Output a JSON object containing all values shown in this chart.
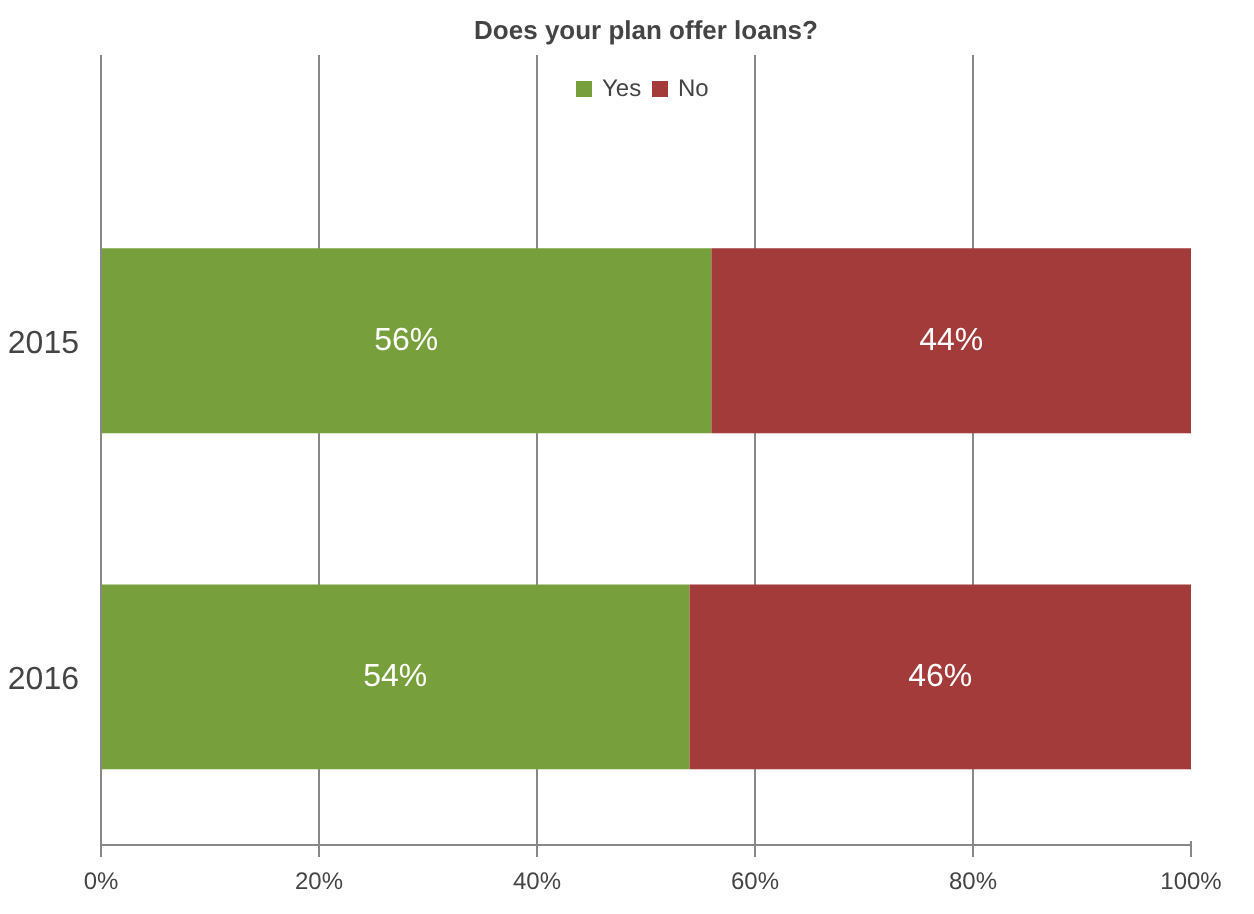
{
  "chart_data": {
    "type": "bar",
    "orientation": "horizontal",
    "stacked": true,
    "title": "Does your plan offer loans?",
    "categories": [
      "2015",
      "2016"
    ],
    "series": [
      {
        "name": "Yes",
        "color": "#77a03c",
        "values": [
          56,
          54
        ],
        "value_labels": [
          "56%",
          "54%"
        ]
      },
      {
        "name": "No",
        "color": "#a33b3b",
        "values": [
          44,
          46
        ],
        "value_labels": [
          "44%",
          "46%"
        ]
      }
    ],
    "xlim": [
      0,
      100
    ],
    "xticks": [
      {
        "value": 0,
        "label": "0%"
      },
      {
        "value": 20,
        "label": "20%"
      },
      {
        "value": 40,
        "label": "40%"
      },
      {
        "value": 60,
        "label": "60%"
      },
      {
        "value": 80,
        "label": "80%"
      },
      {
        "value": 100,
        "label": "100%"
      }
    ],
    "grid": "x",
    "legend": "top"
  }
}
